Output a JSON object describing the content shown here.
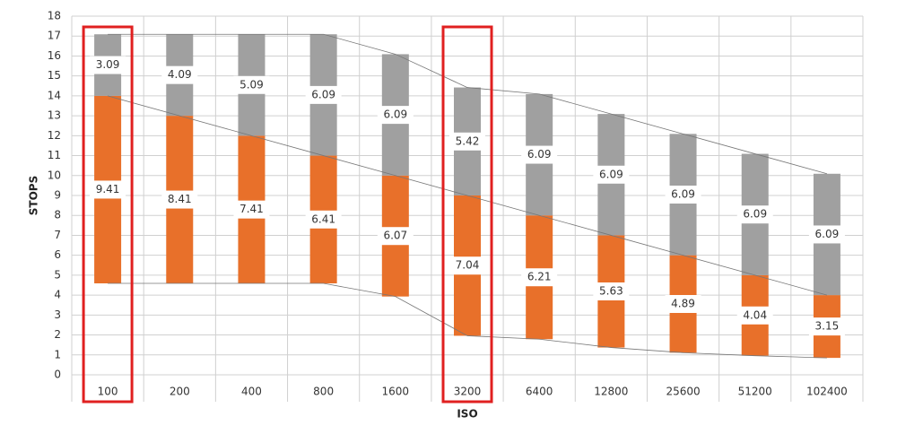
{
  "chart_data": {
    "type": "floating-stacked-bar",
    "x_label": "ISO",
    "y_label": "STOPS",
    "categories": [
      "100",
      "200",
      "400",
      "800",
      "1600",
      "3200",
      "6400",
      "12800",
      "25600",
      "51200",
      "102400"
    ],
    "series": [
      {
        "values": [
          4.59,
          4.59,
          4.59,
          4.59,
          3.93,
          1.96,
          1.79,
          1.37,
          1.11,
          0.96,
          0.85
        ]
      },
      {
        "color": "#e8702a",
        "values": [
          9.41,
          8.41,
          7.41,
          6.41,
          6.07,
          7.04,
          6.21,
          5.63,
          4.89,
          4.04,
          3.15
        ]
      },
      {
        "color": "#a0a0a0",
        "values": [
          3.09,
          4.09,
          5.09,
          6.09,
          6.09,
          5.42,
          6.09,
          6.09,
          6.09,
          6.09,
          6.09
        ]
      }
    ],
    "ylim": [
      0,
      18
    ],
    "yticks": [
      0,
      1,
      2,
      3,
      4,
      5,
      6,
      7,
      8,
      9,
      10,
      11,
      12,
      13,
      14,
      15,
      16,
      17,
      18
    ],
    "grid": true,
    "highlight": [
      0,
      5
    ],
    "highlight_color": "#e02020"
  }
}
